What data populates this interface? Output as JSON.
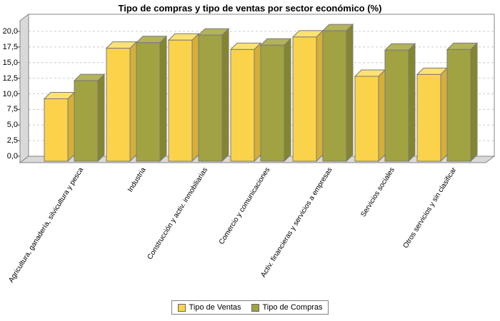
{
  "title": "Tipo de compras y tipo de ventas por sector económico (%)",
  "chart_data": {
    "type": "bar",
    "style": "3d",
    "title": "Tipo de compras y tipo de ventas por sector económico (%)",
    "xlabel": "",
    "ylabel": "",
    "grid": true,
    "legend_position": "bottom",
    "ylim": [
      0,
      22.7
    ],
    "y_tick_values": [
      0,
      2.5,
      5,
      7.5,
      10,
      12.5,
      15,
      17.5,
      20
    ],
    "y_tick_labels": [
      "0,0",
      "2,5",
      "5,0",
      "7,5",
      "10,0",
      "12,5",
      "15,0",
      "17,5",
      "20,0"
    ],
    "categories": [
      "Agricultura, ganadería, silvicultura y pesca",
      "Industria",
      "Construcción y activ. inmobiliarias",
      "Comercio y comunicaciones",
      "Activ. financieras y servicios a empresas",
      "Servicios sociales",
      "Otros servicios y sin clasificar"
    ],
    "series": [
      {
        "name": "Tipo de Ventas",
        "values": [
          10.0,
          18.1,
          19.4,
          17.9,
          19.9,
          13.6,
          13.9
        ],
        "color_front": "#FBD34B",
        "color_top": "#FDE172",
        "color_side": "#D4AF39"
      },
      {
        "name": "Tipo de Compras",
        "values": [
          12.9,
          19.0,
          20.2,
          18.6,
          20.9,
          17.8,
          17.9
        ],
        "color_front": "#A1A242",
        "color_top": "#B2B35A",
        "color_side": "#84852F"
      }
    ],
    "colors": {
      "wall": "#D9D9D9",
      "frame": "#848484",
      "grid": "#CCCCCC",
      "bar_outline": "#7A7A7A",
      "plot_background": "#FFFFFF"
    }
  }
}
